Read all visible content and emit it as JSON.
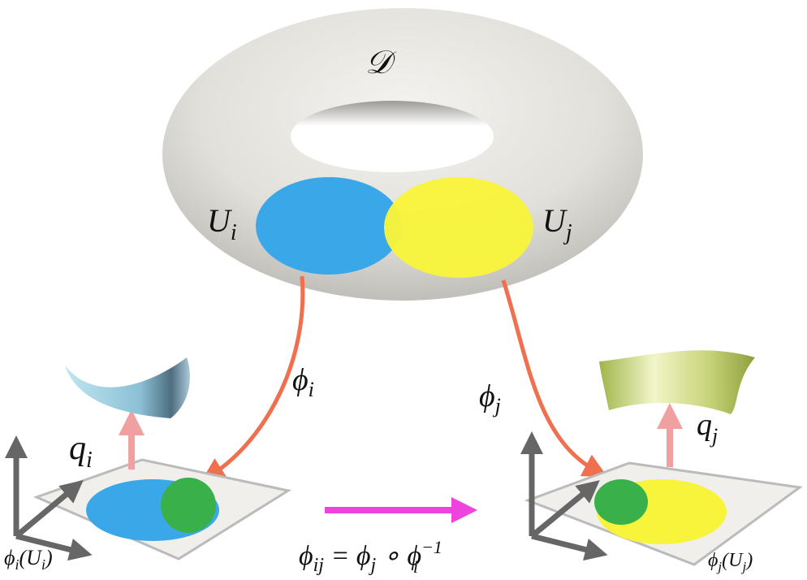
{
  "manifold": "𝒟",
  "charts": [
    {
      "patch": [
        "U",
        "i"
      ],
      "map": [
        "ϕ",
        "i"
      ],
      "lift": [
        "q",
        "i"
      ],
      "image": [
        "ϕ",
        "i",
        "(",
        "U",
        "i",
        ")"
      ]
    },
    {
      "patch": [
        "U",
        "j"
      ],
      "map": [
        "ϕ",
        "j"
      ],
      "lift": [
        "q",
        "j"
      ],
      "image": [
        "ϕ",
        "j",
        "(",
        "U",
        "j",
        ")"
      ]
    }
  ],
  "transition": [
    "ϕ",
    "ij",
    " = ϕ",
    "j",
    " ∘ ϕ",
    "−1",
    "i"
  ]
}
